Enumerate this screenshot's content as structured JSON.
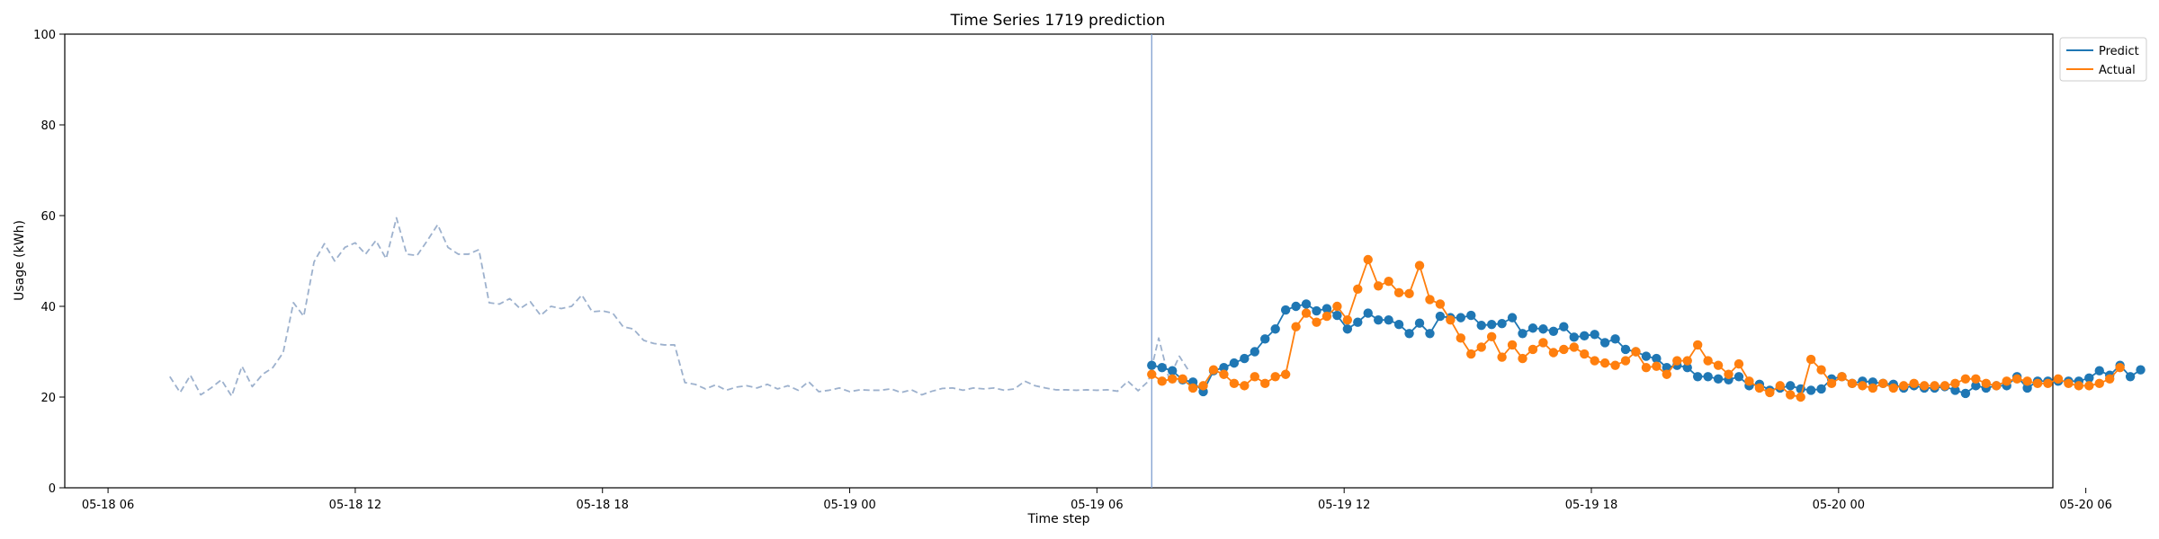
{
  "chart_data": {
    "type": "line",
    "title": "Time Series 1719 prediction",
    "xlabel": "Time step",
    "ylabel": "Usage (kWh)",
    "ylim": [
      0,
      100
    ],
    "yticks": [
      0,
      20,
      40,
      60,
      80,
      100
    ],
    "xlim": [
      -1.05,
      47.2
    ],
    "x_unit": "hours from 05-18 06:00",
    "xticks": [
      {
        "value": 0,
        "label": "05-18 06"
      },
      {
        "value": 6,
        "label": "05-18 12"
      },
      {
        "value": 12,
        "label": "05-18 18"
      },
      {
        "value": 18,
        "label": "05-19 00"
      },
      {
        "value": 24,
        "label": "05-19 06"
      },
      {
        "value": 30,
        "label": "05-19 12"
      },
      {
        "value": 36,
        "label": "05-19 18"
      },
      {
        "value": 42,
        "label": "05-20 00"
      },
      {
        "value": 48,
        "label": "05-20 06"
      }
    ],
    "split_x": 25.33,
    "legend": {
      "position": "top-right outside"
    },
    "series": [
      {
        "name": "",
        "style": "dashed",
        "color": "#9db1cd",
        "x_start": 1.5,
        "x_step": 0.25,
        "values": [
          24.5,
          21.0,
          24.8,
          20.5,
          22.0,
          23.8,
          20.2,
          26.8,
          22.3,
          25.0,
          26.5,
          29.8,
          40.8,
          37.8,
          49.8,
          53.8,
          50.0,
          53.0,
          54.0,
          51.5,
          54.5,
          50.5,
          59.5,
          51.5,
          51.2,
          54.5,
          58.0,
          53.0,
          51.5,
          51.5,
          52.5,
          40.8,
          40.5,
          41.7,
          39.5,
          41.0,
          38.0,
          40.0,
          39.5,
          40.0,
          42.5,
          38.8,
          39.0,
          38.5,
          35.5,
          35.0,
          32.5,
          31.8,
          31.5,
          31.5,
          23.2,
          22.8,
          21.8,
          22.7,
          21.5,
          22.2,
          22.5,
          22.0,
          22.8,
          21.8,
          22.5,
          21.5,
          23.4,
          21.2,
          21.5,
          22.0,
          21.2,
          21.6,
          21.5,
          21.5,
          21.8,
          21.0,
          21.6,
          20.5,
          21.3,
          21.9,
          22.0,
          21.5,
          22.0,
          21.8,
          22.0,
          21.5,
          21.8,
          23.5,
          22.5,
          22.0,
          21.6,
          21.6,
          21.5,
          21.6,
          21.5,
          21.6,
          21.3,
          23.5,
          21.4,
          23.5,
          33.0,
          24.0,
          29.0,
          25.5
        ]
      },
      {
        "name": "Predict",
        "style": "solid-marker",
        "color": "#1f77b4",
        "x_start": 25.33,
        "x_step": 0.25,
        "values": [
          27.0,
          26.5,
          25.8,
          23.8,
          23.3,
          21.2,
          25.8,
          26.5,
          27.5,
          28.5,
          30.0,
          32.8,
          35.0,
          39.2,
          40.0,
          40.5,
          39.0,
          39.5,
          38.0,
          35.0,
          36.5,
          38.5,
          37.0,
          37.0,
          36.0,
          34.0,
          36.3,
          34.0,
          37.8,
          37.5,
          37.5,
          38.0,
          35.8,
          36.0,
          36.2,
          37.5,
          34.0,
          35.2,
          35.0,
          34.5,
          35.5,
          33.2,
          33.5,
          33.8,
          32.0,
          32.8,
          30.5,
          30.0,
          29.0,
          28.5,
          26.5,
          27.0,
          26.5,
          24.5,
          24.5,
          24.0,
          23.8,
          24.5,
          22.5,
          22.8,
          21.5,
          22.0,
          22.5,
          21.8,
          21.5,
          21.8,
          24.0,
          24.5,
          23.0,
          23.5,
          23.3,
          23.0,
          22.8,
          22.0,
          22.5,
          22.0,
          22.0,
          22.3,
          21.5,
          20.8,
          22.5,
          22.0,
          22.5,
          22.5,
          24.5,
          22.0,
          23.5,
          23.5,
          23.5,
          23.5,
          23.5,
          24.2,
          25.8,
          24.8,
          27.0,
          24.5,
          26.0
        ]
      },
      {
        "name": "Actual",
        "style": "solid-marker",
        "color": "#ff7f0e",
        "x_start": 25.33,
        "x_step": 0.25,
        "values": [
          25.0,
          23.5,
          24.0,
          24.0,
          22.0,
          22.5,
          26.0,
          25.0,
          23.0,
          22.5,
          24.5,
          23.0,
          24.5,
          25.0,
          35.5,
          38.5,
          36.5,
          37.8,
          40.0,
          37.0,
          43.8,
          50.3,
          44.5,
          45.5,
          43.0,
          42.8,
          49.0,
          41.5,
          40.5,
          37.0,
          33.0,
          29.5,
          31.0,
          33.3,
          28.8,
          31.5,
          28.5,
          30.5,
          32.0,
          29.8,
          30.5,
          31.0,
          29.5,
          28.0,
          27.5,
          27.0,
          28.0,
          30.0,
          26.5,
          26.8,
          25.0,
          28.0,
          28.0,
          31.5,
          28.0,
          27.0,
          25.0,
          27.3,
          23.5,
          22.0,
          21.0,
          22.5,
          20.5,
          20.0,
          28.3,
          26.0,
          23.0,
          24.5,
          23.0,
          22.5,
          22.0,
          23.0,
          22.0,
          22.5,
          23.0,
          22.5,
          22.5,
          22.5,
          23.0,
          24.0,
          24.0,
          23.0,
          22.5,
          23.5,
          24.0,
          23.5,
          23.0,
          23.0,
          24.0,
          23.0,
          22.5,
          22.5,
          23.0,
          24.0,
          26.5
        ]
      }
    ]
  }
}
